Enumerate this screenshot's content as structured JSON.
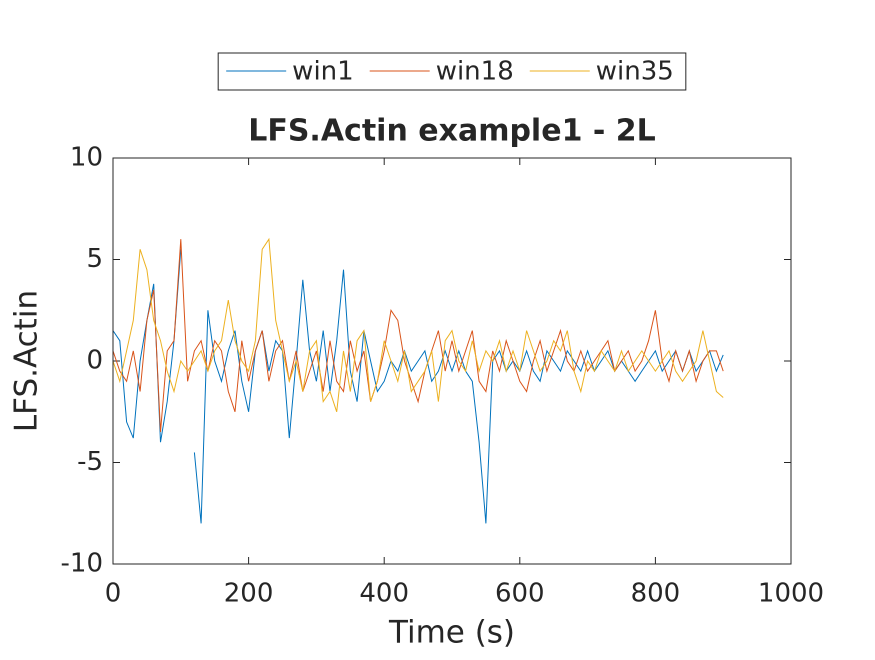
{
  "chart_data": {
    "type": "line",
    "title": "LFS.Actin example1 - 2L",
    "xlabel": "Time (s)",
    "ylabel": "LFS.Actin",
    "xlim": [
      0,
      1000
    ],
    "xticks": [
      0,
      200,
      400,
      600,
      800,
      1000
    ],
    "ylim": [
      -10,
      10
    ],
    "yticks": [
      -10,
      -5,
      0,
      5,
      10
    ],
    "legend": "north",
    "x": [
      0,
      10,
      20,
      30,
      40,
      50,
      60,
      70,
      80,
      90,
      100,
      110,
      120,
      130,
      140,
      150,
      160,
      170,
      180,
      190,
      200,
      210,
      220,
      230,
      240,
      250,
      260,
      270,
      280,
      290,
      300,
      310,
      320,
      330,
      340,
      350,
      360,
      370,
      380,
      390,
      400,
      410,
      420,
      430,
      440,
      450,
      460,
      470,
      480,
      490,
      500,
      510,
      520,
      530,
      540,
      550,
      560,
      570,
      580,
      590,
      600,
      610,
      620,
      630,
      640,
      650,
      660,
      670,
      680,
      690,
      700,
      710,
      720,
      730,
      740,
      750,
      760,
      770,
      780,
      790,
      800,
      810,
      820,
      830,
      840,
      850,
      860,
      870,
      880,
      890,
      900
    ],
    "series": [
      {
        "name": "win1",
        "color": "#0072BD",
        "values": [
          1.5,
          1,
          -3,
          -3.8,
          0,
          2,
          3.8,
          -4,
          -2,
          1,
          5.5,
          null,
          -4.5,
          -8,
          2.5,
          0,
          -1,
          0.5,
          1.5,
          -1,
          -2.5,
          0.5,
          1.5,
          -0.5,
          1,
          0.5,
          -3.8,
          0,
          4,
          0.5,
          -1,
          1.5,
          -1.5,
          1,
          4.5,
          -0.5,
          -2,
          1.5,
          0,
          -1.5,
          -1,
          0,
          -0.5,
          0.5,
          -0.5,
          0,
          0.5,
          -1,
          -0.5,
          0.5,
          -0.5,
          0.5,
          -0.5,
          -1,
          -4,
          -8,
          0,
          0.5,
          -0.5,
          0,
          -0.5,
          0.5,
          -0.5,
          -1,
          0.5,
          0,
          -0.5,
          0.5,
          0,
          -0.5,
          0.5,
          -0.5,
          0,
          0.5,
          -0.5,
          0,
          -0.5,
          -1,
          -0.5,
          0,
          0.5,
          -0.5,
          0,
          0.5,
          -0.5,
          0.5,
          -0.5,
          0,
          0.5,
          -0.5,
          0.3
        ]
      },
      {
        "name": "win18",
        "color": "#D95319",
        "values": [
          0.5,
          -0.5,
          -1,
          0.5,
          -1.5,
          2,
          3.5,
          -3.5,
          0.5,
          1,
          6,
          -1,
          0.5,
          1,
          -0.5,
          1,
          0.5,
          -1.5,
          -2.5,
          1,
          -1,
          0.5,
          1.5,
          -1,
          0.5,
          1,
          -1,
          0.5,
          -1.5,
          -0.5,
          0.5,
          -1.5,
          1,
          -1,
          -1.5,
          1,
          -0.5,
          0.5,
          -2,
          -1,
          0.5,
          2.5,
          2,
          0,
          -1,
          -2,
          -0.5,
          0.5,
          1.5,
          -0.5,
          1,
          -0.5,
          0.5,
          1.5,
          -1,
          -1.5,
          0.5,
          -0.5,
          1,
          0,
          -1,
          -1.5,
          0,
          1,
          -0.5,
          0.5,
          1.5,
          0,
          -0.5,
          0.5,
          -0.5,
          0,
          0.5,
          1,
          -0.5,
          0,
          0.5,
          -0.5,
          0,
          1,
          2.5,
          0,
          -1,
          0.5,
          -0.5,
          0.5,
          -1,
          0,
          0.5,
          0.5,
          -0.5
        ]
      },
      {
        "name": "win35",
        "color": "#EDB120",
        "values": [
          0,
          -1,
          0.5,
          2,
          5.5,
          4.5,
          2,
          1,
          -0.5,
          -1.5,
          0,
          -0.5,
          0,
          0.5,
          -0.5,
          0.5,
          1,
          3,
          1,
          0,
          -0.5,
          1,
          5.5,
          6,
          2,
          0.5,
          -1,
          0,
          -1.5,
          0.5,
          1,
          -2,
          -1.5,
          -2.5,
          0.5,
          -1.5,
          1,
          1.5,
          -2,
          -1,
          1,
          0,
          -1,
          0.5,
          -1.5,
          -1,
          -0.5,
          0.5,
          -2,
          1,
          1.5,
          0,
          -0.5,
          1,
          -0.5,
          0.5,
          0,
          1,
          -0.5,
          0.5,
          -0.5,
          1.5,
          0.5,
          -0.5,
          0,
          1,
          0.5,
          1.5,
          -0.5,
          -1.5,
          0,
          -0.5,
          0.5,
          0,
          -0.5,
          0.5,
          -0.5,
          0,
          0.5,
          0,
          -0.5,
          0,
          0.5,
          -0.5,
          -1,
          -0.5,
          0,
          1.5,
          0,
          -1.5,
          -1.8
        ]
      }
    ]
  }
}
